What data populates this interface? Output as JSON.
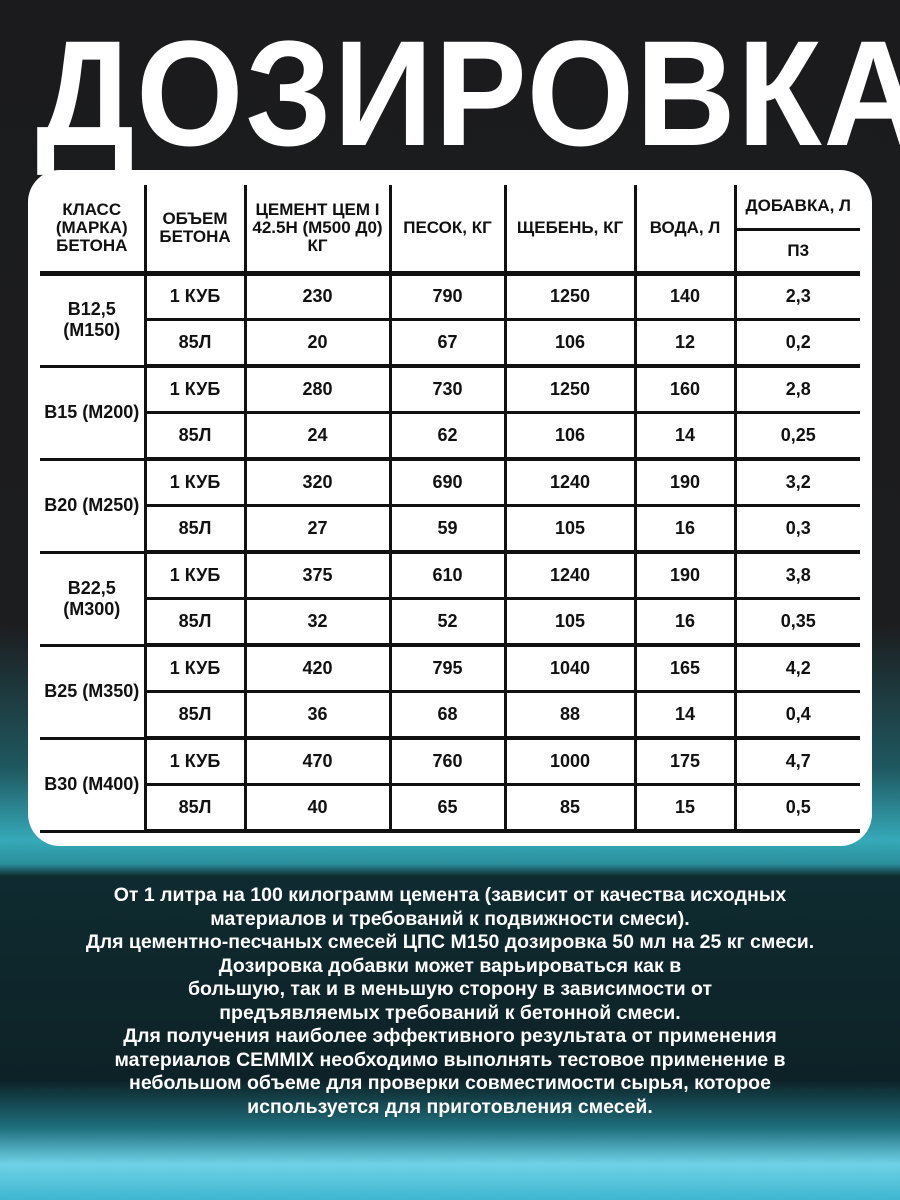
{
  "title": "ДОЗИРОВКА",
  "table": {
    "headers": {
      "class": "КЛАСС (МАРКА) БЕТОНА",
      "volume": "ОБЪЕМ БЕТОНА",
      "cement": "ЦЕМЕНТ ЦЕМ I 42.5Н (М500 Д0) КГ",
      "sand": "ПЕСОК, КГ",
      "gravel": "ЩЕБЕНЬ, КГ",
      "water": "ВОДА, Л",
      "additive": "ДОБАВКА, Л",
      "additive_sub": "П3"
    },
    "groups": [
      {
        "class": "B12,5 (M150)",
        "rows": [
          [
            "1 КУБ",
            "230",
            "790",
            "1250",
            "140",
            "2,3"
          ],
          [
            "85Л",
            "20",
            "67",
            "106",
            "12",
            "0,2"
          ]
        ]
      },
      {
        "class": "B15 (M200)",
        "rows": [
          [
            "1 КУБ",
            "280",
            "730",
            "1250",
            "160",
            "2,8"
          ],
          [
            "85Л",
            "24",
            "62",
            "106",
            "14",
            "0,25"
          ]
        ]
      },
      {
        "class": "B20 (M250)",
        "rows": [
          [
            "1 КУБ",
            "320",
            "690",
            "1240",
            "190",
            "3,2"
          ],
          [
            "85Л",
            "27",
            "59",
            "105",
            "16",
            "0,3"
          ]
        ]
      },
      {
        "class": "B22,5 (M300)",
        "rows": [
          [
            "1 КУБ",
            "375",
            "610",
            "1240",
            "190",
            "3,8"
          ],
          [
            "85Л",
            "32",
            "52",
            "105",
            "16",
            "0,35"
          ]
        ]
      },
      {
        "class": "B25 (M350)",
        "rows": [
          [
            "1 КУБ",
            "420",
            "795",
            "1040",
            "165",
            "4,2"
          ],
          [
            "85Л",
            "36",
            "68",
            "88",
            "14",
            "0,4"
          ]
        ]
      },
      {
        "class": "B30 (M400)",
        "rows": [
          [
            "1 КУБ",
            "470",
            "760",
            "1000",
            "175",
            "4,7"
          ],
          [
            "85Л",
            "40",
            "65",
            "85",
            "15",
            "0,5"
          ]
        ]
      }
    ]
  },
  "notes": [
    "От 1 литра на 100 килограмм цемента (зависит от качества исходных материалов и требований к подвижности смеси).",
    "Для цементно-песчаных смесей ЦПС М150 дозировка 50 мл на 25 кг смеси.",
    "Дозировка добавки может варьироваться как в большую, так и в меньшую сторону в зависимости от предъявляемых требований к бетонной смеси.",
    "Для получения наиболее эффективного результата от применения материалов CEMMIX необходимо выполнять тестовое применение в небольшом объеме для проверки совместимости сырья, которое используется для приготовления смесей."
  ]
}
